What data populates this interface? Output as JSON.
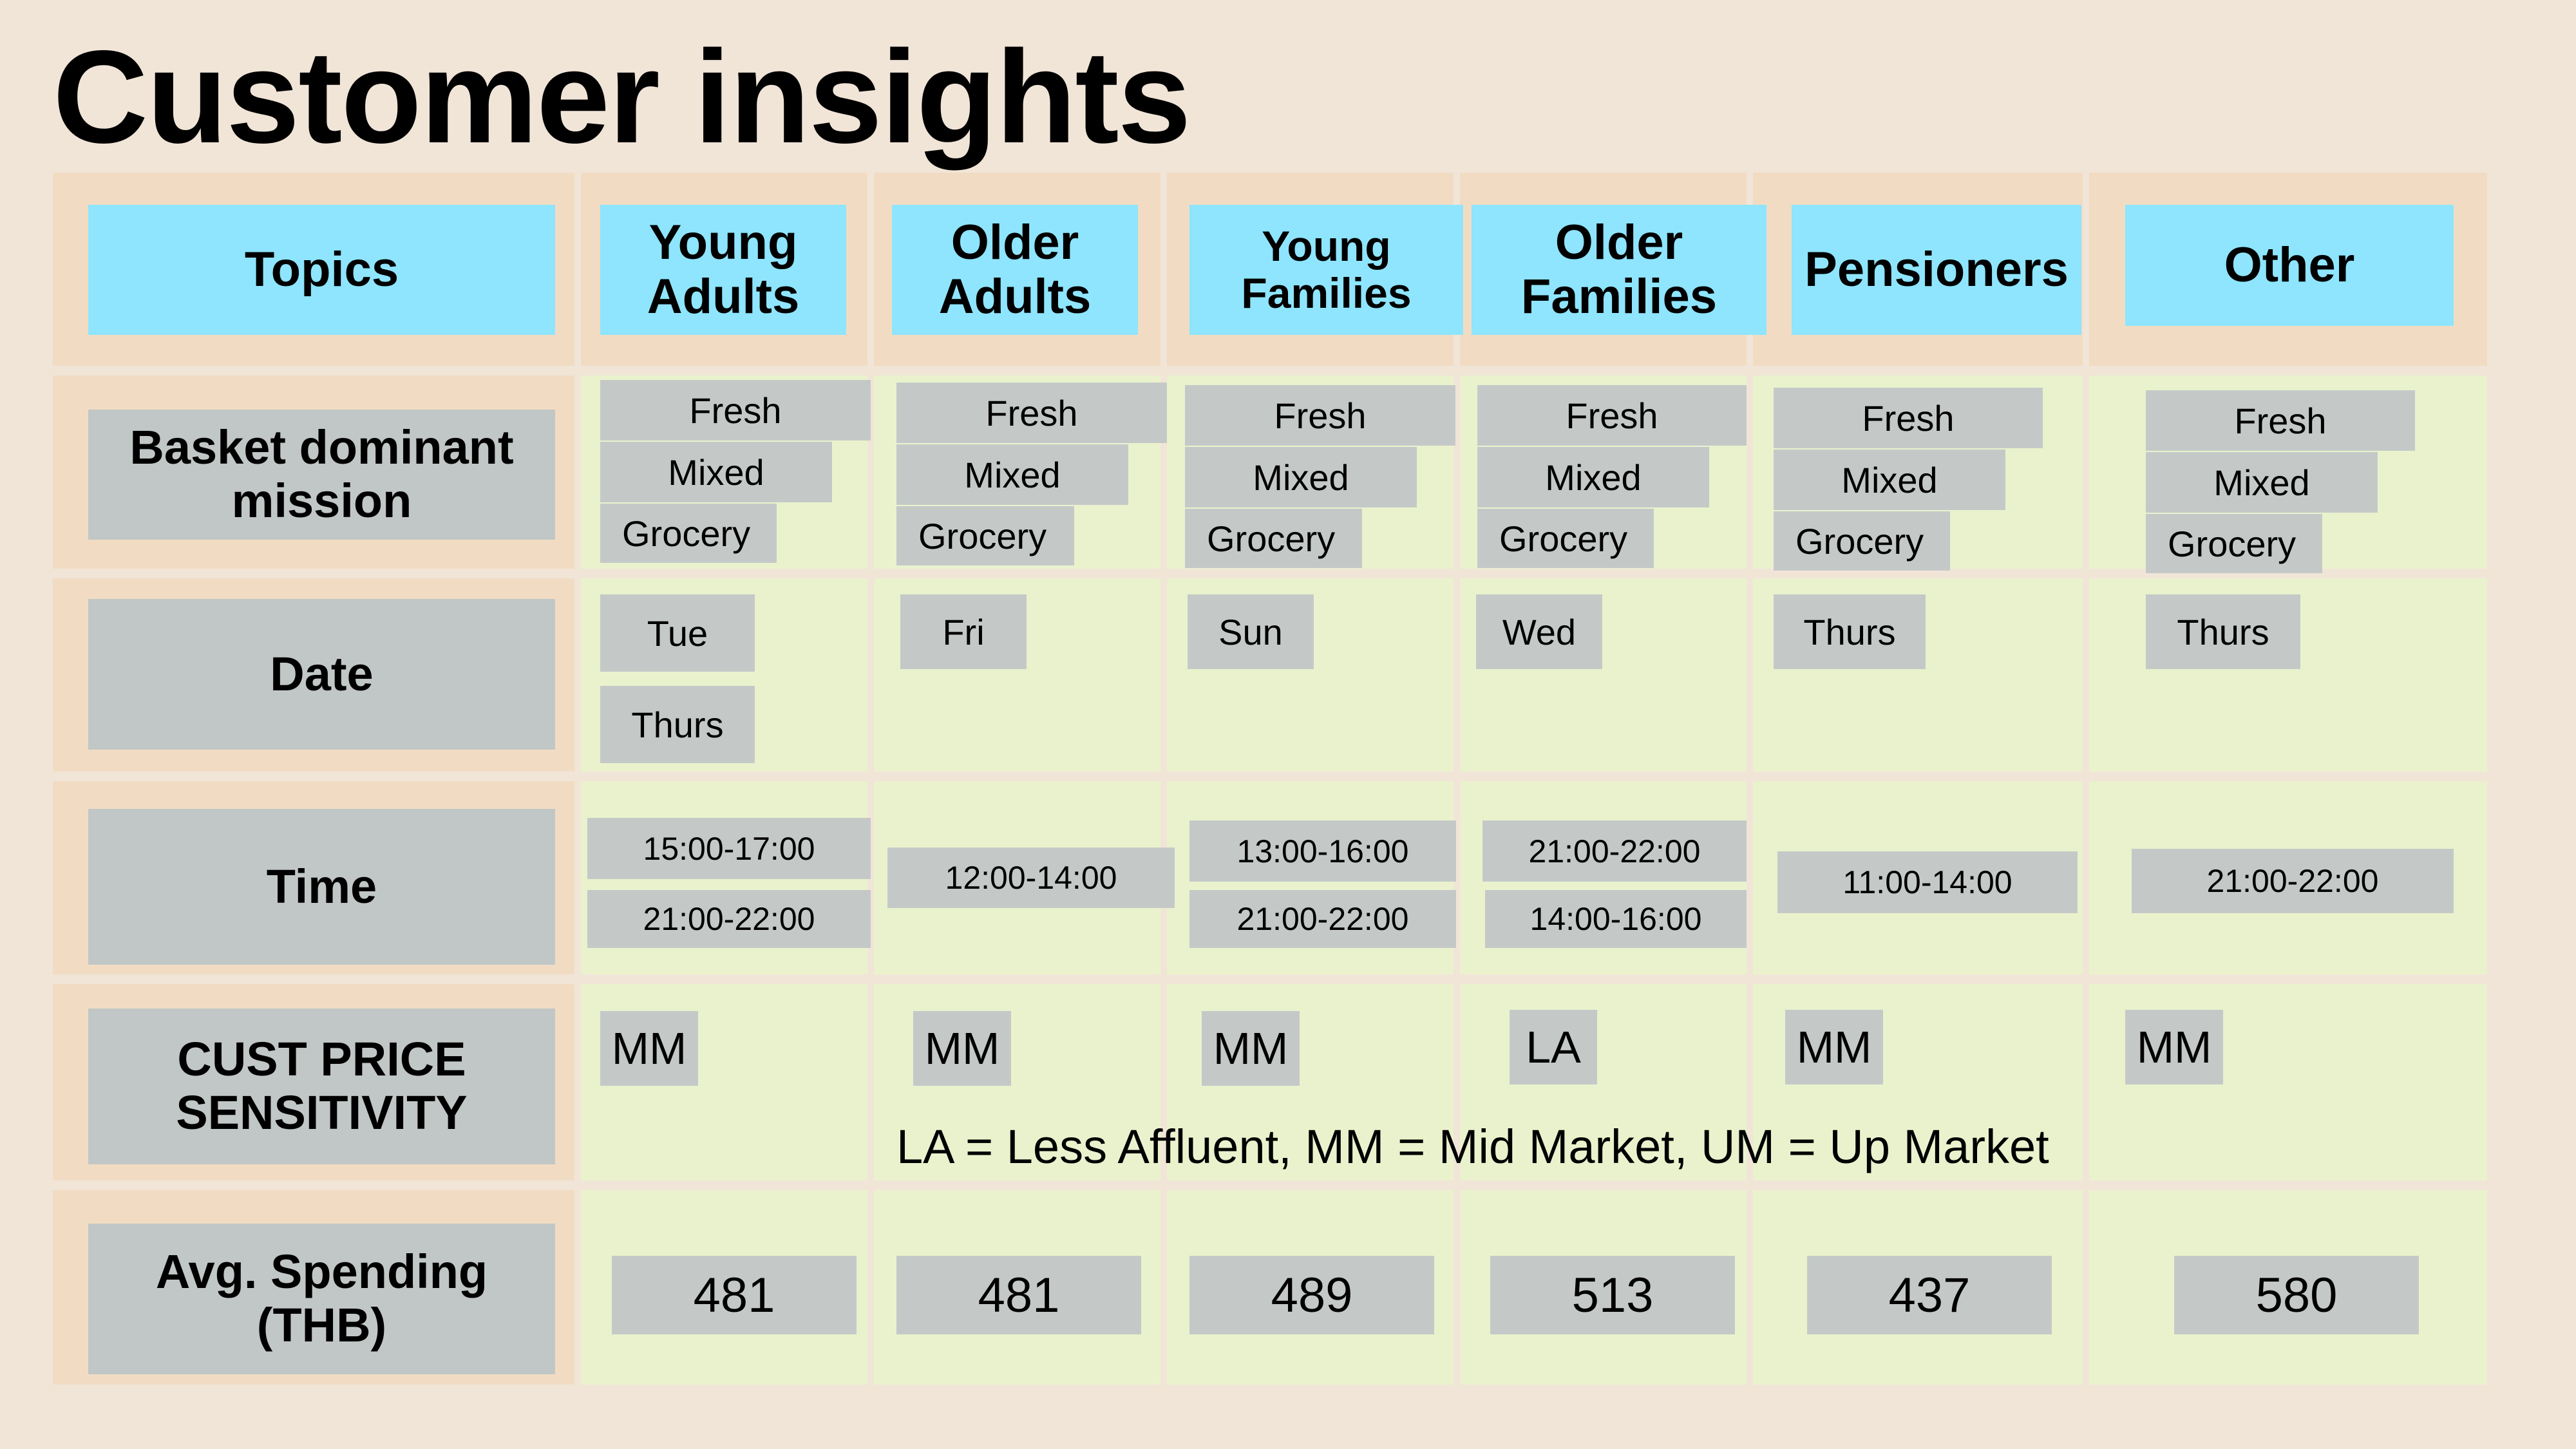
{
  "title": "Customer insights",
  "header": {
    "topics": "Topics",
    "segments": [
      {
        "line1": "Young",
        "line2": "Adults"
      },
      {
        "line1": "Older",
        "line2": "Adults"
      },
      {
        "line1": "Young",
        "line2": "Families"
      },
      {
        "line1": "Older",
        "line2": "Families"
      },
      {
        "line1": "Pensioners",
        "line2": ""
      },
      {
        "line1": "Other",
        "line2": ""
      }
    ]
  },
  "rows": {
    "basket": {
      "line1": "Basket dominant",
      "line2": "mission"
    },
    "date": {
      "label": "Date"
    },
    "time": {
      "label": "Time"
    },
    "price": {
      "line1": "CUST PRICE",
      "line2": "SENSITIVITY"
    },
    "spend": {
      "line1": "Avg. Spending",
      "line2": "(THB)"
    }
  },
  "basket_items": [
    "Fresh",
    "Mixed",
    "Grocery"
  ],
  "dates": [
    [
      "Tue",
      "Thurs"
    ],
    [
      "Fri"
    ],
    [
      "Sun"
    ],
    [
      "Wed"
    ],
    [
      "Thurs"
    ],
    [
      "Thurs"
    ]
  ],
  "times": [
    [
      "15:00-17:00",
      "21:00-22:00"
    ],
    [
      "12:00-14:00"
    ],
    [
      "13:00-16:00",
      "21:00-22:00"
    ],
    [
      "21:00-22:00",
      "14:00-16:00"
    ],
    [
      "11:00-14:00"
    ],
    [
      "21:00-22:00"
    ]
  ],
  "price": [
    "MM",
    "MM",
    "MM",
    "LA",
    "MM",
    "MM"
  ],
  "price_legend": "LA = Less Affluent, MM = Mid Market, UM = Up Market",
  "spending": [
    "481",
    "481",
    "489",
    "513",
    "437",
    "580"
  ],
  "colors": {
    "background": "#f1e5d8",
    "header_cell": "#f1dcc3",
    "body_cell": "#eaf2cd",
    "segment_label": "#8ee5fd",
    "chip": "#c4c9c8"
  }
}
